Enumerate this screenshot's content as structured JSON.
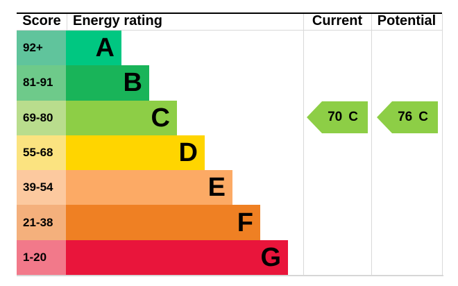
{
  "header": {
    "score": "Score",
    "energy_rating": "Energy rating",
    "current": "Current",
    "potential": "Potential"
  },
  "chart_data": {
    "type": "bar",
    "title": "Energy rating",
    "columns": [
      "Score",
      "Energy rating",
      "Current",
      "Potential"
    ],
    "bands": [
      {
        "grade": "A",
        "score_range": "92+",
        "bar_color": "#00c781",
        "score_bg": "#60c49c"
      },
      {
        "grade": "B",
        "score_range": "81-91",
        "bar_color": "#19b459",
        "score_bg": "#6eca8a"
      },
      {
        "grade": "C",
        "score_range": "69-80",
        "bar_color": "#8dce46",
        "score_bg": "#b9dd8d"
      },
      {
        "grade": "D",
        "score_range": "55-68",
        "bar_color": "#ffd500",
        "score_bg": "#fbe380"
      },
      {
        "grade": "E",
        "score_range": "39-54",
        "bar_color": "#fcaa65",
        "score_bg": "#fcc99f"
      },
      {
        "grade": "F",
        "score_range": "21-38",
        "bar_color": "#ef8023",
        "score_bg": "#f4b07c"
      },
      {
        "grade": "G",
        "score_range": "1-20",
        "bar_color": "#e9153b",
        "score_bg": "#f2798a"
      }
    ],
    "current": {
      "value": "70",
      "grade": "C",
      "arrow_color": "#8dce46"
    },
    "potential": {
      "value": "76",
      "grade": "C",
      "arrow_color": "#8dce46"
    },
    "layout_hints": {
      "legend": "none",
      "grid": "off",
      "bar_direction": "horizontal",
      "bar_length_increases_from_A_to_G": true
    }
  }
}
